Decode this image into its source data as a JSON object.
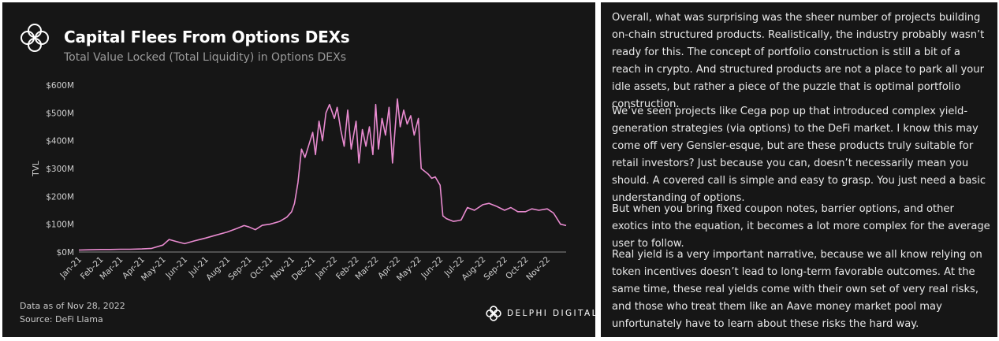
{
  "header": {
    "title": "Capital Flees From Options DEXs",
    "subtitle": "Total Value Locked (Total Liquidity) in Options DEXs"
  },
  "footer": {
    "data_note": "Data as of Nov 28, 2022",
    "source": "Source: DeFi Llama",
    "brand": "DELPHI DIGITAL"
  },
  "colors": {
    "line": "#e98bd0",
    "background": "#161616",
    "text": "#e8e8e8"
  },
  "chart_data": {
    "type": "line",
    "title": "Capital Flees From Options DEXs",
    "subtitle": "Total Value Locked (Total Liquidity) in Options DEXs",
    "xlabel": "",
    "ylabel": "TVL",
    "y_unit": "$M",
    "ylim": [
      0,
      600
    ],
    "yticks": [
      0,
      100,
      200,
      300,
      400,
      500,
      600
    ],
    "ytick_labels": [
      "$0M",
      "$100M",
      "$200M",
      "$300M",
      "$400M",
      "$500M",
      "$600M"
    ],
    "xtick_labels": [
      "Jan-21",
      "Feb-21",
      "Mar-21",
      "Apr-21",
      "May-21",
      "Jun-21",
      "Jul-21",
      "Aug-21",
      "Sep-21",
      "Oct-21",
      "Nov-21",
      "Dec-21",
      "Jan-22",
      "Feb-22",
      "Mar-22",
      "Apr-22",
      "May-22",
      "Jun-22",
      "Jul-22",
      "Aug-22",
      "Sep-22",
      "Oct-22",
      "Nov-22"
    ],
    "grid": false,
    "legend": "none",
    "series": [
      {
        "x": [
          "2021-01-01",
          "2021-01-15",
          "2021-02-01",
          "2021-02-15",
          "2021-03-01",
          "2021-03-15",
          "2021-04-01",
          "2021-04-15",
          "2021-05-01",
          "2021-05-10",
          "2021-05-20",
          "2021-06-01",
          "2021-06-15",
          "2021-07-01",
          "2021-07-15",
          "2021-08-01",
          "2021-08-15",
          "2021-08-25",
          "2021-09-01",
          "2021-09-10",
          "2021-09-20",
          "2021-10-01",
          "2021-10-15",
          "2021-10-25",
          "2021-11-01",
          "2021-11-05",
          "2021-11-10",
          "2021-11-15",
          "2021-11-20",
          "2021-11-25",
          "2021-12-01",
          "2021-12-05",
          "2021-12-10",
          "2021-12-15",
          "2021-12-20",
          "2021-12-25",
          "2022-01-01",
          "2022-01-05",
          "2022-01-10",
          "2022-01-15",
          "2022-01-20",
          "2022-01-25",
          "2022-02-01",
          "2022-02-05",
          "2022-02-10",
          "2022-02-15",
          "2022-02-20",
          "2022-02-25",
          "2022-03-01",
          "2022-03-05",
          "2022-03-10",
          "2022-03-15",
          "2022-03-20",
          "2022-03-25",
          "2022-04-01",
          "2022-04-05",
          "2022-04-10",
          "2022-04-15",
          "2022-04-20",
          "2022-04-25",
          "2022-05-01",
          "2022-05-05",
          "2022-05-10",
          "2022-05-15",
          "2022-05-20",
          "2022-05-25",
          "2022-06-01",
          "2022-06-05",
          "2022-06-10",
          "2022-06-15",
          "2022-06-20",
          "2022-06-25",
          "2022-07-01",
          "2022-07-10",
          "2022-07-20",
          "2022-08-01",
          "2022-08-10",
          "2022-08-20",
          "2022-09-01",
          "2022-09-10",
          "2022-09-20",
          "2022-10-01",
          "2022-10-10",
          "2022-10-20",
          "2022-11-01",
          "2022-11-10",
          "2022-11-20",
          "2022-11-28"
        ],
        "values": [
          7,
          8,
          9,
          9,
          10,
          10,
          11,
          13,
          25,
          45,
          38,
          30,
          40,
          50,
          60,
          72,
          85,
          95,
          90,
          80,
          96,
          100,
          110,
          125,
          145,
          175,
          250,
          370,
          340,
          380,
          430,
          350,
          470,
          400,
          500,
          530,
          480,
          520,
          440,
          380,
          510,
          370,
          470,
          320,
          440,
          380,
          450,
          350,
          530,
          370,
          480,
          420,
          520,
          320,
          550,
          450,
          510,
          460,
          490,
          420,
          480,
          300,
          290,
          280,
          265,
          270,
          240,
          130,
          120,
          115,
          110,
          112,
          115,
          160,
          150,
          170,
          175,
          165,
          150,
          160,
          145,
          145,
          155,
          150,
          155,
          140,
          100,
          95
        ]
      }
    ]
  },
  "text_panel": {
    "paragraphs": [
      "Overall, what was surprising was the sheer number of projects building on-chain structured products. Realistically, the industry probably wasn’t ready for this. The concept of portfolio construction is still a bit of a reach in crypto. And structured products are not a place to park all your idle assets, but rather a piece of the puzzle that is optimal portfolio construction.",
      "We’ve seen projects like Cega pop up that introduced complex yield-generation strategies (via options) to the DeFi market. I know this may come off very Gensler-esque, but are these products truly suitable for retail investors? Just because you can, doesn’t necessarily mean you should. A covered call is simple and easy to grasp. You just need a basic understanding of options.",
      "But when you bring fixed coupon notes, barrier options, and other exotics into the equation, it becomes a lot more complex for the average user to follow.",
      "Real yield is a very important narrative, because we all know relying on token incentives doesn’t lead to long-term favorable outcomes. At the same time, these real yields come with their own set of very real risks, and those who treat them like an Aave money market pool may unfortunately have to learn about these risks the hard way."
    ]
  }
}
